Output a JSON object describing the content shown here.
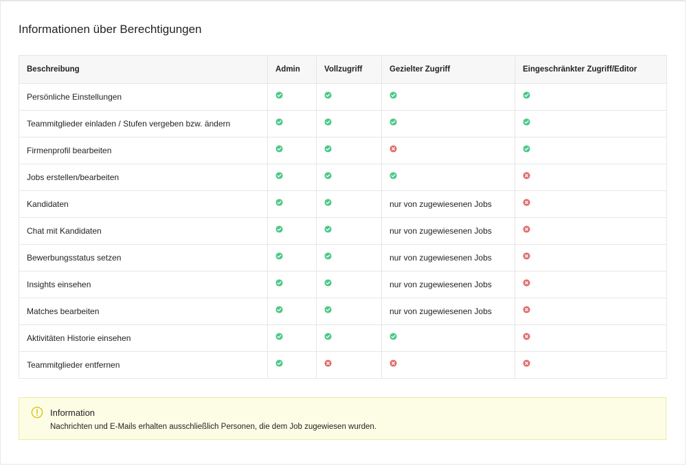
{
  "page_title": "Informationen über Berechtigungen",
  "colors": {
    "check": "#4cc98a",
    "cross": "#e06c6c",
    "info_bg": "#fdfde6",
    "info_border": "#ecec9c",
    "info_icon": "#d8c21a"
  },
  "table": {
    "headers": [
      "Beschreibung",
      "Admin",
      "Vollzugriff",
      "Gezielter Zugriff",
      "Eingeschränkter Zugriff/Editor"
    ],
    "rows": [
      {
        "label": "Persönliche Einstellungen",
        "cells": [
          "check",
          "check",
          "check",
          "check"
        ]
      },
      {
        "label": "Teammitglieder einladen / Stufen vergeben bzw. ändern",
        "cells": [
          "check",
          "check",
          "check",
          "check"
        ]
      },
      {
        "label": "Firmenprofil bearbeiten",
        "cells": [
          "check",
          "check",
          "cross",
          "check"
        ]
      },
      {
        "label": "Jobs erstellen/bearbeiten",
        "cells": [
          "check",
          "check",
          "check",
          "cross"
        ]
      },
      {
        "label": "Kandidaten",
        "cells": [
          "check",
          "check",
          "nur von zugewiesenen Jobs",
          "cross"
        ]
      },
      {
        "label": "Chat mit Kandidaten",
        "cells": [
          "check",
          "check",
          "nur von zugewiesenen Jobs",
          "cross"
        ]
      },
      {
        "label": "Bewerbungsstatus setzen",
        "cells": [
          "check",
          "check",
          "nur von zugewiesenen Jobs",
          "cross"
        ]
      },
      {
        "label": "Insights einsehen",
        "cells": [
          "check",
          "check",
          "nur von zugewiesenen Jobs",
          "cross"
        ]
      },
      {
        "label": "Matches bearbeiten",
        "cells": [
          "check",
          "check",
          "nur von zugewiesenen Jobs",
          "cross"
        ]
      },
      {
        "label": "Aktivitäten Historie einsehen",
        "cells": [
          "check",
          "check",
          "check",
          "cross"
        ]
      },
      {
        "label": "Teammitglieder entfernen",
        "cells": [
          "check",
          "cross",
          "cross",
          "cross"
        ]
      }
    ]
  },
  "info": {
    "icon": "exclamation-circle-icon",
    "title": "Information",
    "text": "Nachrichten und E-Mails erhalten ausschließlich Personen, die dem Job zugewiesen wurden."
  }
}
